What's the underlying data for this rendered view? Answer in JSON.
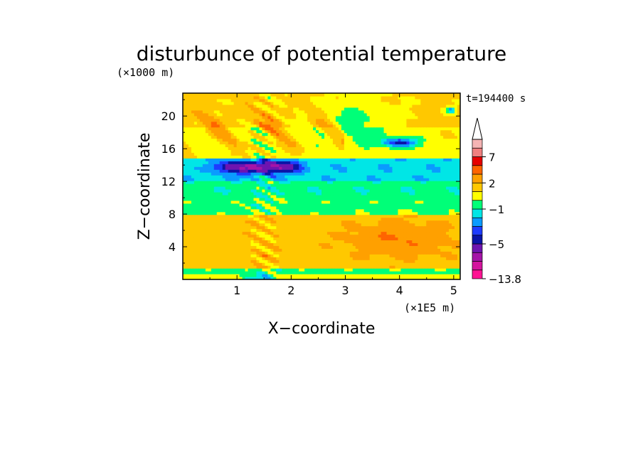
{
  "chart_data": {
    "type": "heatmap",
    "title": "disturbunce of potential temperature",
    "time_label": "t=194400 s",
    "xlabel": "X−coordinate",
    "ylabel": "Z−coordinate",
    "x_unit": "(×1E5 m)",
    "y_unit": "(×1000 m)",
    "xlim": [
      0,
      5.12
    ],
    "ylim": [
      0,
      22.8
    ],
    "x_ticks": [
      1,
      2,
      3,
      4,
      5
    ],
    "y_ticks": [
      4,
      8,
      12,
      16,
      20
    ],
    "colorbar": {
      "labels": [
        {
          "text": "7",
          "value": 7
        },
        {
          "text": "2",
          "value": 2
        },
        {
          "text": "−1",
          "value": -1
        },
        {
          "text": "−5",
          "value": -5
        },
        {
          "text": "−13.8",
          "value": -13.8
        }
      ],
      "levels": [
        -13.8,
        -11,
        -9,
        -7,
        -5,
        -4,
        -3,
        -2,
        -1,
        0,
        1,
        2,
        3,
        5,
        7,
        9,
        13
      ],
      "colors": [
        "#ff1493",
        "#d4149e",
        "#a514a8",
        "#6e14b0",
        "#0a14a8",
        "#1e3cff",
        "#0a9bff",
        "#00e6e6",
        "#00ff78",
        "#ffff00",
        "#ffc800",
        "#ffa000",
        "#ff6400",
        "#e60000",
        "#f08080",
        "#f5b4b4"
      ],
      "overflow_arrow": "top"
    }
  }
}
